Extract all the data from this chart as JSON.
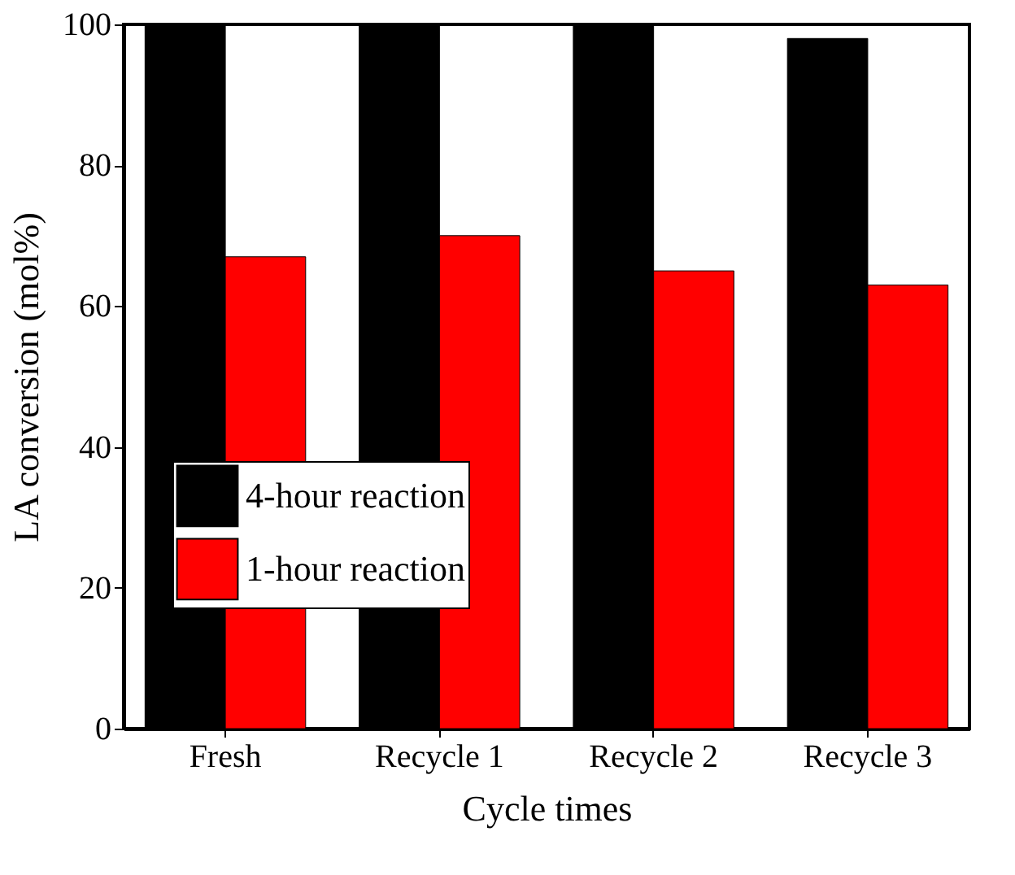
{
  "chart_data": {
    "type": "bar",
    "xlabel": "Cycle times",
    "ylabel": "LA conversion (mol%)",
    "categories": [
      "Fresh",
      "Recycle 1",
      "Recycle 2",
      "Recycle 3"
    ],
    "series": [
      {
        "name": "4-hour reaction",
        "color": "#000000",
        "values": [
          100,
          100,
          100,
          98
        ]
      },
      {
        "name": "1-hour reaction",
        "color": "#ff0000",
        "values": [
          67,
          70,
          65,
          63
        ]
      }
    ],
    "ylim": [
      0,
      100
    ],
    "yticks": [
      0,
      20,
      40,
      60,
      80,
      100
    ],
    "grid": false,
    "legend": "center left"
  }
}
